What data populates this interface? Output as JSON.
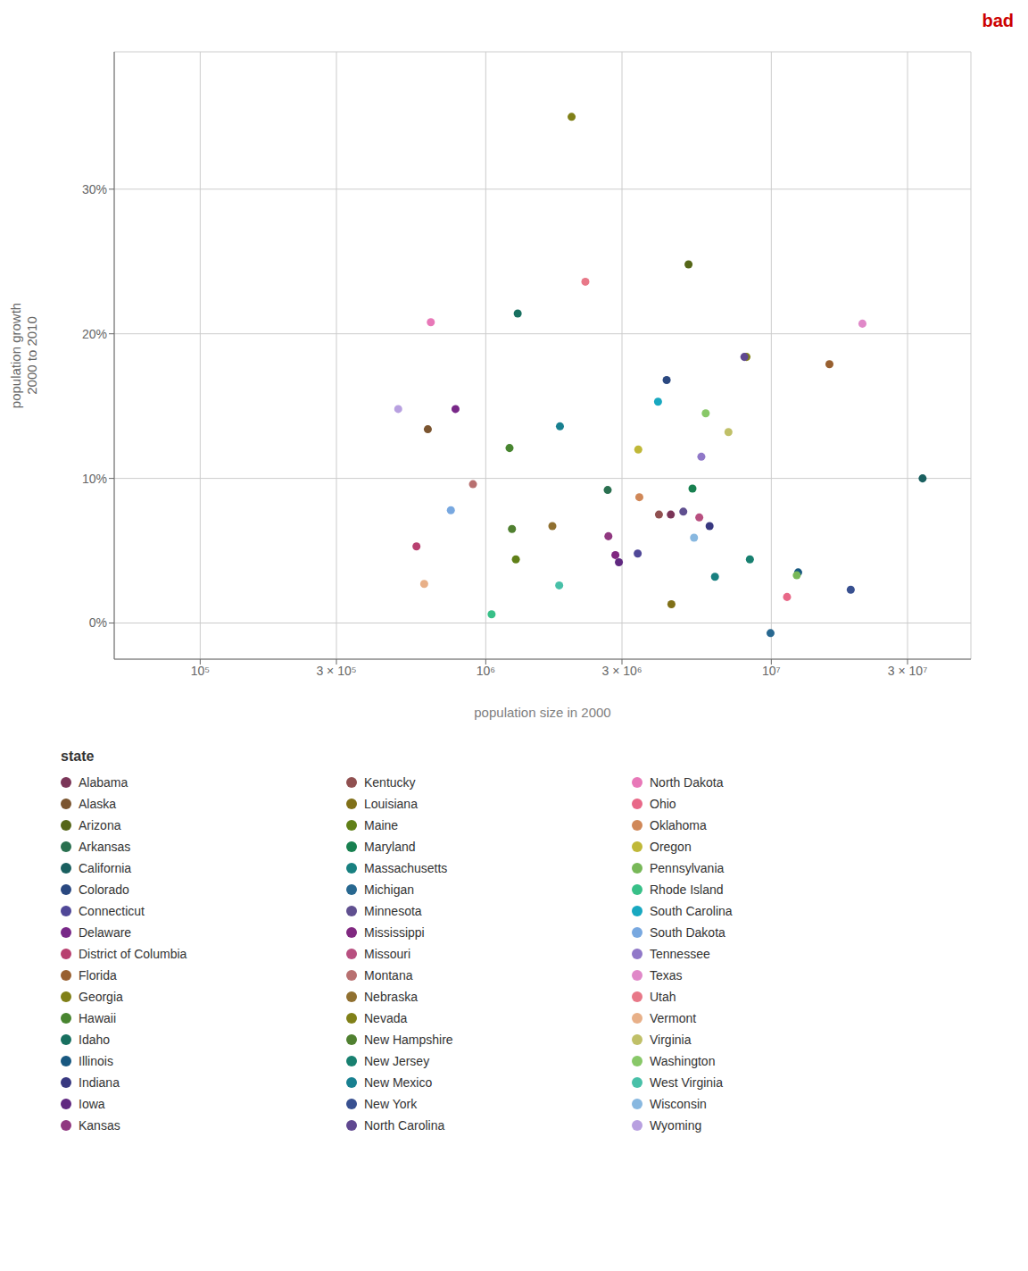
{
  "chart_data": {
    "type": "scatter",
    "xlabel": "population size in 2000",
    "ylabel": "population growth\n2000 to 2010",
    "log": "x",
    "grid": true,
    "legend": "bottom",
    "legend_title": "state",
    "annotations": [
      {
        "text": "bad",
        "color": "#CC0000"
      }
    ],
    "xlim": [
      50000,
      50000000
    ],
    "xticks": [
      {
        "value": 100000,
        "label": "10⁵"
      },
      {
        "value": 300000,
        "label": "3 × 10⁵"
      },
      {
        "value": 1000000,
        "label": "10⁶"
      },
      {
        "value": 3000000,
        "label": "3 × 10⁶"
      },
      {
        "value": 10000000,
        "label": "10⁷"
      },
      {
        "value": 30000000,
        "label": "3 × 10⁷"
      }
    ],
    "ylim": [
      -0.025,
      0.395
    ],
    "yticks": [
      {
        "value": 0.0,
        "label": "0%"
      },
      {
        "value": 0.1,
        "label": "10%"
      },
      {
        "value": 0.2,
        "label": "20%"
      },
      {
        "value": 0.3,
        "label": "30%"
      }
    ],
    "series": [
      {
        "name": "Alabama",
        "color": "#7B3558",
        "x": [
          4447100
        ],
        "values": [
          0.075
        ]
      },
      {
        "name": "Alaska",
        "color": "#7B5530",
        "x": [
          626932
        ],
        "values": [
          0.134
        ]
      },
      {
        "name": "Arizona",
        "color": "#556618",
        "x": [
          5130632
        ],
        "values": [
          0.248
        ]
      },
      {
        "name": "Arkansas",
        "color": "#2A7050",
        "x": [
          2673400
        ],
        "values": [
          0.092
        ]
      },
      {
        "name": "California",
        "color": "#1A6060",
        "x": [
          33871648
        ],
        "values": [
          0.1
        ]
      },
      {
        "name": "Colorado",
        "color": "#2A4880",
        "x": [
          4301261
        ],
        "values": [
          0.168
        ]
      },
      {
        "name": "Connecticut",
        "color": "#504898",
        "x": [
          3405565
        ],
        "values": [
          0.048
        ]
      },
      {
        "name": "Delaware",
        "color": "#782888",
        "x": [
          783600
        ],
        "values": [
          0.148
        ]
      },
      {
        "name": "District of Columbia",
        "color": "#B84070",
        "x": [
          572059
        ],
        "values": [
          0.053
        ]
      },
      {
        "name": "Florida",
        "color": "#986030",
        "x": [
          15982378
        ],
        "values": [
          0.179
        ]
      },
      {
        "name": "Georgia",
        "color": "#808018",
        "x": [
          8186453
        ],
        "values": [
          0.184
        ]
      },
      {
        "name": "Hawaii",
        "color": "#488530",
        "x": [
          1211537
        ],
        "values": [
          0.121
        ]
      },
      {
        "name": "Idaho",
        "color": "#187060",
        "x": [
          1293953
        ],
        "values": [
          0.214
        ]
      },
      {
        "name": "Illinois",
        "color": "#185880",
        "x": [
          12419293
        ],
        "values": [
          0.035
        ]
      },
      {
        "name": "Indiana",
        "color": "#383880",
        "x": [
          6080485
        ],
        "values": [
          0.067
        ]
      },
      {
        "name": "Iowa",
        "color": "#602880",
        "x": [
          2926324
        ],
        "values": [
          0.042
        ]
      },
      {
        "name": "Kansas",
        "color": "#903880",
        "x": [
          2688418
        ],
        "values": [
          0.06
        ]
      },
      {
        "name": "Kentucky",
        "color": "#905050",
        "x": [
          4041769
        ],
        "values": [
          0.075
        ]
      },
      {
        "name": "Louisiana",
        "color": "#807018",
        "x": [
          4468976
        ],
        "values": [
          0.013
        ]
      },
      {
        "name": "Maine",
        "color": "#608018",
        "x": [
          1274923
        ],
        "values": [
          0.044
        ]
      },
      {
        "name": "Maryland",
        "color": "#188050",
        "x": [
          5296486
        ],
        "values": [
          0.093
        ]
      },
      {
        "name": "Massachusetts",
        "color": "#188080",
        "x": [
          6349097
        ],
        "values": [
          0.032
        ]
      },
      {
        "name": "Michigan",
        "color": "#286890",
        "x": [
          9938444
        ],
        "values": [
          -0.007
        ]
      },
      {
        "name": "Minnesota",
        "color": "#605090",
        "x": [
          4919479
        ],
        "values": [
          0.077
        ]
      },
      {
        "name": "Mississippi",
        "color": "#802880",
        "x": [
          2844658
        ],
        "values": [
          0.047
        ]
      },
      {
        "name": "Missouri",
        "color": "#B85080",
        "x": [
          5595211
        ],
        "values": [
          0.073
        ]
      },
      {
        "name": "Montana",
        "color": "#B87070",
        "x": [
          902195
        ],
        "values": [
          0.096
        ]
      },
      {
        "name": "Nebraska",
        "color": "#907030",
        "x": [
          1711263
        ],
        "values": [
          0.067
        ]
      },
      {
        "name": "Nevada",
        "color": "#808018",
        "x": [
          1998257
        ],
        "values": [
          0.35
        ]
      },
      {
        "name": "New Hampshire",
        "color": "#508030",
        "x": [
          1235786
        ],
        "values": [
          0.065
        ]
      },
      {
        "name": "New Jersey",
        "color": "#188070",
        "x": [
          8414350
        ],
        "values": [
          0.044
        ]
      },
      {
        "name": "New Mexico",
        "color": "#188090",
        "x": [
          1819046
        ],
        "values": [
          0.136
        ]
      },
      {
        "name": "New York",
        "color": "#385090",
        "x": [
          18976457
        ],
        "values": [
          0.023
        ]
      },
      {
        "name": "North Carolina",
        "color": "#604890",
        "x": [
          8049313
        ],
        "values": [
          0.184
        ]
      },
      {
        "name": "North Dakota",
        "color": "#E878B8",
        "x": [
          642200
        ],
        "values": [
          0.208
        ]
      },
      {
        "name": "Ohio",
        "color": "#E86888",
        "x": [
          11353140
        ],
        "values": [
          0.018
        ]
      },
      {
        "name": "Oklahoma",
        "color": "#D08858",
        "x": [
          3450654
        ],
        "values": [
          0.087
        ]
      },
      {
        "name": "Oregon",
        "color": "#C0B838",
        "x": [
          3421399
        ],
        "values": [
          0.12
        ]
      },
      {
        "name": "Pennsylvania",
        "color": "#78B858",
        "x": [
          12281054
        ],
        "values": [
          0.033
        ]
      },
      {
        "name": "Rhode Island",
        "color": "#38C088",
        "x": [
          1048319
        ],
        "values": [
          0.006
        ]
      },
      {
        "name": "South Carolina",
        "color": "#18A8C0",
        "x": [
          4012012
        ],
        "values": [
          0.153
        ]
      },
      {
        "name": "South Dakota",
        "color": "#78A8E0",
        "x": [
          754844
        ],
        "values": [
          0.078
        ]
      },
      {
        "name": "Tennessee",
        "color": "#9078C8",
        "x": [
          5689283
        ],
        "values": [
          0.115
        ]
      },
      {
        "name": "Texas",
        "color": "#E088C8",
        "x": [
          20851820
        ],
        "values": [
          0.207
        ]
      },
      {
        "name": "Utah",
        "color": "#E87888",
        "x": [
          2233169
        ],
        "values": [
          0.236
        ]
      },
      {
        "name": "Vermont",
        "color": "#E8B088",
        "x": [
          608827
        ],
        "values": [
          0.027
        ]
      },
      {
        "name": "Virginia",
        "color": "#C0C068",
        "x": [
          7078515
        ],
        "values": [
          0.132
        ]
      },
      {
        "name": "Washington",
        "color": "#88C868",
        "x": [
          5894121
        ],
        "values": [
          0.145
        ]
      },
      {
        "name": "West Virginia",
        "color": "#48C0A8",
        "x": [
          1808344
        ],
        "values": [
          0.026
        ]
      },
      {
        "name": "Wisconsin",
        "color": "#88B8E0",
        "x": [
          5363675
        ],
        "values": [
          0.059
        ]
      },
      {
        "name": "Wyoming",
        "color": "#B8A0E0",
        "x": [
          493782
        ],
        "values": [
          0.148
        ]
      }
    ]
  }
}
